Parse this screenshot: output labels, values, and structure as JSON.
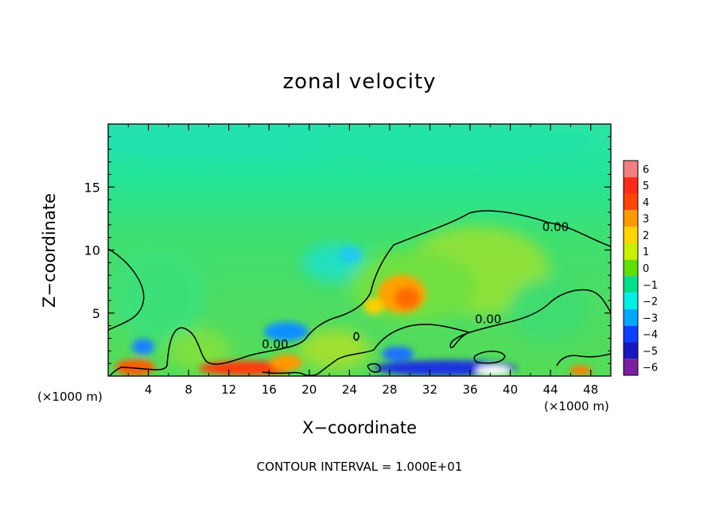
{
  "chart_data": {
    "type": "heatmap",
    "title": "zonal velocity",
    "xlabel": "X−coordinate",
    "ylabel": "Z−coordinate",
    "x_unit_label": "(×1000 m)",
    "x_unit_label_right": "(×1000 m)",
    "footer": "CONTOUR INTERVAL = 1.000E+01",
    "xlim": [
      0,
      50
    ],
    "ylim": [
      0,
      20
    ],
    "x_ticks": [
      4,
      8,
      12,
      16,
      20,
      24,
      28,
      32,
      36,
      40,
      44,
      48
    ],
    "y_ticks": [
      5,
      10,
      15
    ],
    "colorbar": {
      "levels": [
        6,
        5,
        4,
        3,
        2,
        1,
        0,
        -1,
        -2,
        -3,
        -4,
        -5,
        -6
      ],
      "labels": [
        "6",
        "5",
        "4",
        "3",
        "2",
        "1",
        "0",
        "−1",
        "−2",
        "−3",
        "−4",
        "−5",
        "−6"
      ],
      "colors": [
        "#f08080",
        "#ff2a1a",
        "#ff4400",
        "#ff9a00",
        "#ffd400",
        "#c8f000",
        "#5ee000",
        "#00e08a",
        "#00f0e8",
        "#00a8ff",
        "#1040ff",
        "#1818c0",
        "#7b1fa2"
      ]
    },
    "contour_labels": [
      {
        "text": "0.00",
        "x": 16.6,
        "y": 2.2
      },
      {
        "text": "0.00",
        "x": 37.8,
        "y": 4.2
      },
      {
        "text": "0.00",
        "x": 44.5,
        "y": 11.5
      }
    ]
  }
}
